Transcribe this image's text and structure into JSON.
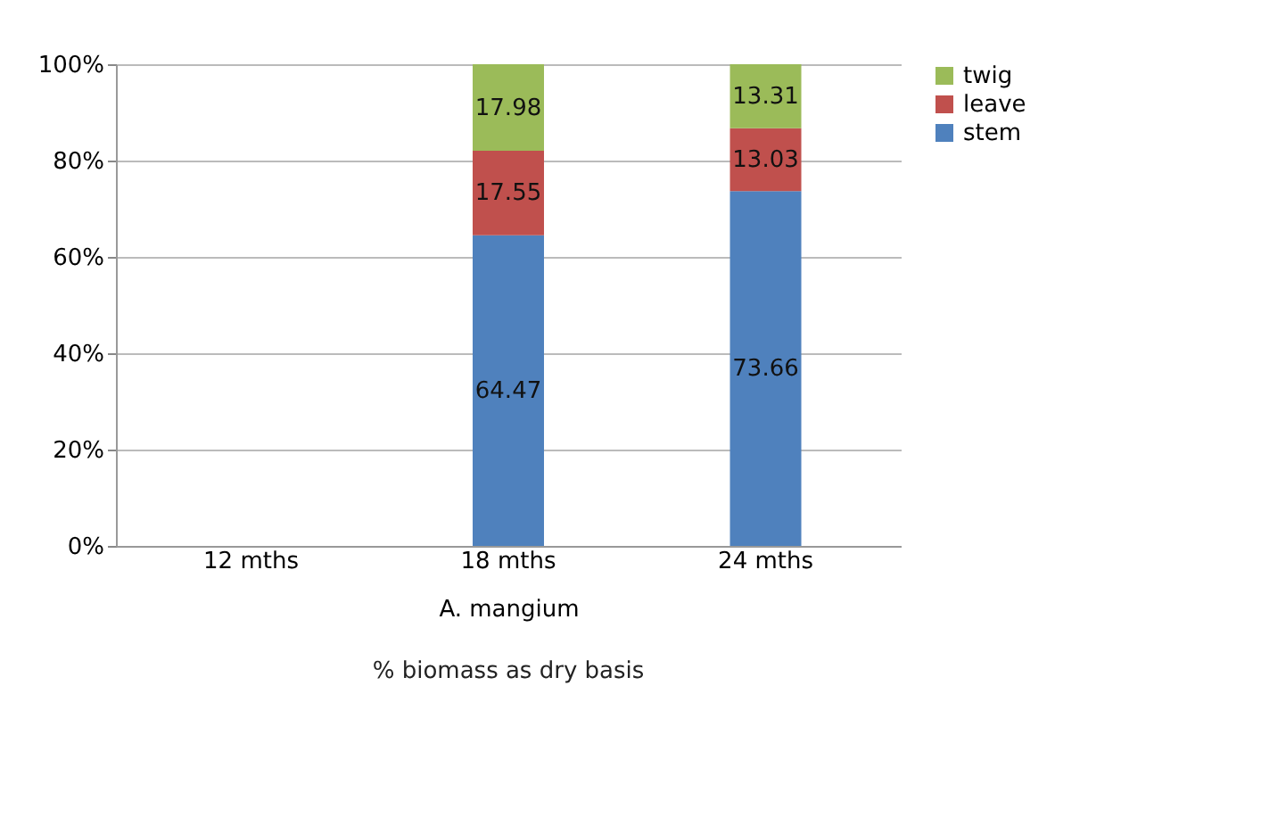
{
  "chart_data": {
    "type": "bar",
    "stacked": true,
    "categories": [
      "12 mths",
      "18 mths",
      "24 mths"
    ],
    "series": [
      {
        "name": "stem",
        "color": "#4f81bd",
        "values": [
          null,
          64.47,
          73.66
        ]
      },
      {
        "name": "leave",
        "color": "#c0504d",
        "values": [
          null,
          17.55,
          13.03
        ]
      },
      {
        "name": "twig",
        "color": "#9bbb59",
        "values": [
          null,
          17.98,
          13.31
        ]
      }
    ],
    "ylim": [
      0,
      100
    ],
    "yticks": [
      {
        "value": 0,
        "label": "0%"
      },
      {
        "value": 20,
        "label": "20%"
      },
      {
        "value": 40,
        "label": "40%"
      },
      {
        "value": 60,
        "label": "60%"
      },
      {
        "value": 80,
        "label": "80%"
      },
      {
        "value": 100,
        "label": "100%"
      }
    ],
    "xlabel": "A. mangium",
    "annotations": [
      "% biomass as dry basis"
    ],
    "data_labels": true,
    "grid": "y",
    "legend": "right"
  }
}
